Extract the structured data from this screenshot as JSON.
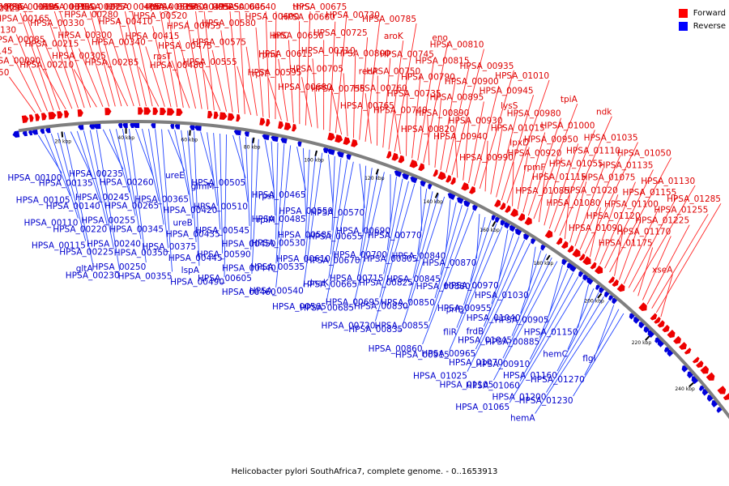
{
  "legend": [
    {
      "label": "Forward",
      "color": "#ff0000"
    },
    {
      "label": "Reverse",
      "color": "#0000ff"
    }
  ],
  "caption": "Helicobacter pylori SouthAfrica7, complete genome. - 0..1653913",
  "colors": {
    "forward": "#ee0000",
    "reverse": "#0000dd",
    "backbone": "#7f7f7f"
  },
  "axis_ticks": [
    "20 kbp",
    "40 kbp",
    "60 kbp",
    "80 kbp",
    "100 kbp",
    "120 kbp",
    "140 kbp",
    "160 kbp",
    "180 kbp",
    "200 kbp",
    "220 kbp",
    "240 kbp"
  ],
  "forward_labels": [
    "HPSA_00150",
    "HPSA_00145",
    "HPSA_00130",
    "HPSA_00125",
    "HPSA_00095",
    "HPSA_00090",
    "HPSA_00085",
    "HPSA_00165",
    "HPSA_00160",
    "HPSA_00155",
    "HPSA_00210",
    "HPSA_00215",
    "HPSA_00330",
    "HPSA_00315",
    "HPSA_00310",
    "HPSA_00305",
    "HPSA_00300",
    "HPSA_00280",
    "HPSA_00275",
    "HPSA_00270",
    "HPSA_00285",
    "HPSA_00340",
    "HPSA_00410",
    "HPSA_00405",
    "prfA",
    "rpsT",
    "HPSA_00415",
    "HPSA_00520",
    "HPSA_00515",
    "HPSA_00500",
    "HPSA_00480",
    "HPSA_00475",
    "HPSA_00455",
    "HPSA_00495",
    "HPSA_00525",
    "HPSA_00555",
    "HPSA_00575",
    "HPSA_00580",
    "HPSA_00645",
    "HPSA_00640",
    "rplT",
    "rpmI",
    "infC",
    "HPSA_00600",
    "thrS",
    "HPSA_00595",
    "HPSA_00615",
    "HPSA_00650",
    "HPSA_00660",
    "HPSA_00675",
    "HPSA_00680",
    "HPSA_00705",
    "HPSA_00710",
    "HPSA_00725",
    "HPSA_00730",
    "HPSA_00755",
    "recA",
    "HPSA_00800",
    "aroK",
    "HPSA_00785",
    "HPSA_00765",
    "HPSA_00760",
    "HPSA_00750",
    "HPSA_00745",
    "eno",
    "HPSA_00740",
    "HPSA_00735",
    "HPSA_00790",
    "HPSA_00815",
    "HPSA_00810",
    "HPSA_00820",
    "HPSA_00890",
    "HPSA_00895",
    "HPSA_00900",
    "HPSA_00935",
    "HPSA_00940",
    "HPSA_00930",
    "lysS",
    "HPSA_00945",
    "HPSA_01010",
    "HPSA_00990",
    "lpxD",
    "HPSA_01015",
    "HPSA_00980",
    "tpiA",
    "rpmF",
    "HPSA_00920",
    "HPSA_00950",
    "HPSA_01000",
    "ndk",
    "HPSA_01085",
    "HPSA_01115",
    "HPSA_01055",
    "HPSA_01110",
    "HPSA_01035",
    "HPSA_01080",
    "HPSA_01020",
    "HPSA_01075",
    "HPSA_01135",
    "HPSA_01050",
    "HPSA_01090",
    "HPSA_01120",
    "HPSA_01100",
    "HPSA_01155",
    "HPSA_01130",
    "HPSA_01175",
    "HPSA_01170",
    "HPSA_01225",
    "HPSA_01255",
    "HPSA_01285",
    "xseA"
  ],
  "reverse_labels": [
    "HPSA_00100",
    "HPSA_00105",
    "HPSA_00110",
    "HPSA_00115",
    "gltA",
    "HPSA_00135",
    "HPSA_00140",
    "HPSA_00220",
    "HPSA_00225",
    "HPSA_00230",
    "HPSA_00235",
    "HPSA_00245",
    "HPSA_00255",
    "HPSA_00240",
    "HPSA_00250",
    "HPSA_00260",
    "HPSA_00265",
    "HPSA_00345",
    "HPSA_00350",
    "HPSA_00355",
    "ureE",
    "HPSA_00365",
    "ureB",
    "HPSA_00375",
    "lspA",
    "glmM",
    "HPSA_00420",
    "HPSA_00435",
    "HPSA_00445",
    "HPSA_00490",
    "HPSA_00505",
    "HPSA_00510",
    "HPSA_00545",
    "HPSA_00590",
    "HPSA_00605",
    "rpsI",
    "rplM",
    "HPSA_00450",
    "HPSA_00440",
    "HPSA_00460",
    "HPSA_00465",
    "HPSA_00485",
    "HPSA_00530",
    "HPSA_00535",
    "HPSA_00540",
    "HPSA_00550",
    "HPSA_00585",
    "HPSA_00610",
    "dnaK",
    "HPSA_00565",
    "HPSA_00570",
    "HPSA_00655",
    "HPSA_00670",
    "HPSA_00665",
    "HPSA_00685",
    "HPSA_00690",
    "HPSA_00700",
    "HPSA_00715",
    "HPSA_00695",
    "HPSA_00720",
    "HPSA_00770",
    "HPSA_00805",
    "HPSA_00825",
    "HPSA_00830",
    "HPSA_00835",
    "HPSA_00840",
    "HPSA_00845",
    "HPSA_00850",
    "HPSA_00855",
    "HPSA_00860",
    "HPSA_00870",
    "HPSA_00880",
    "prfB",
    "fliR",
    "HPSA_00915",
    "HPSA_00970",
    "HPSA_00955",
    "frdB",
    "HPSA_00965",
    "HPSA_01025",
    "HPSA_01030",
    "HPSA_01040",
    "HPSA_01045",
    "HPSA_01070",
    "HPSA_01105",
    "HPSA_00905",
    "HPSA_00885",
    "HPSA_00910",
    "HPSA_01060",
    "HPSA_01065",
    "HPSA_01150",
    "hemC",
    "HPSA_01160",
    "HPSA_01200",
    "hemA",
    "flgI",
    "HPSA_01270",
    "HPSA_01230"
  ]
}
